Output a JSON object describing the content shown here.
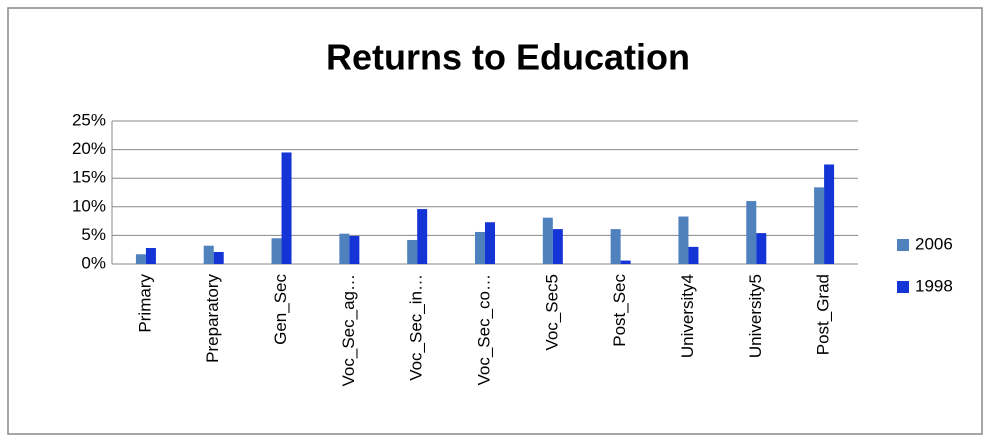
{
  "chart_data": {
    "type": "bar",
    "title": "Returns to Education",
    "categories": [
      "Primary",
      "Preparatory",
      "Gen_Sec",
      "Voc_Sec_ag…",
      "Voc_Sec_in…",
      "Voc_Sec_co…",
      "Voc_Sec5",
      "Post_Sec",
      "University4",
      "University5",
      "Post_Grad"
    ],
    "series": [
      {
        "name": "2006",
        "color": "#4f81bd",
        "values": [
          1.7,
          3.2,
          4.5,
          5.3,
          4.2,
          5.6,
          8.1,
          6.1,
          8.3,
          11.0,
          13.4
        ]
      },
      {
        "name": "1998",
        "color": "#1434d6",
        "values": [
          2.8,
          2.1,
          19.5,
          4.9,
          9.6,
          7.3,
          6.1,
          0.6,
          3.0,
          5.4,
          17.4
        ]
      }
    ],
    "ylim": [
      0,
      25
    ],
    "yticks": [
      {
        "value": 0,
        "label": "0%"
      },
      {
        "value": 5,
        "label": "5%"
      },
      {
        "value": 10,
        "label": "10%"
      },
      {
        "value": 15,
        "label": "15%"
      },
      {
        "value": 20,
        "label": "20%"
      },
      {
        "value": 25,
        "label": "25%"
      }
    ],
    "grid": true,
    "legend": "right"
  }
}
